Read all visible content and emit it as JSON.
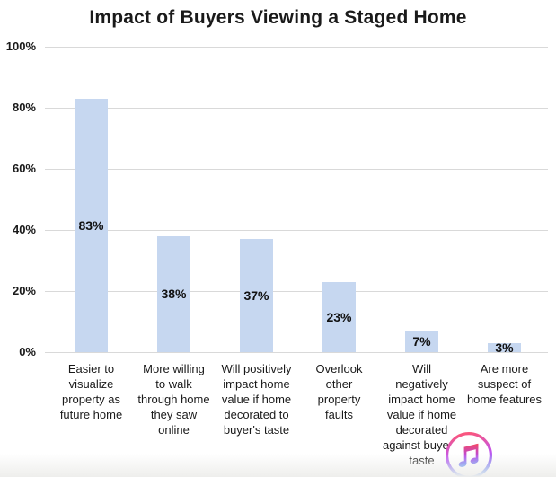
{
  "title": "Impact of Buyers Viewing a Staged Home",
  "colors": {
    "bar_fill": "#c6d7f0",
    "gridline": "#d9d9d9",
    "text": "#1a1a1a",
    "icon_gradient_top": "#f8485a",
    "icon_gradient_mid": "#b44ae8",
    "icon_gradient_bottom": "#3f8ef7"
  },
  "y_axis": {
    "ticks": [
      "100%",
      "80%",
      "60%",
      "40%",
      "20%",
      "0%"
    ]
  },
  "overlay_icon": {
    "name": "itunes-music-icon"
  },
  "chart_data": {
    "type": "bar",
    "title": "Impact of Buyers Viewing a Staged Home",
    "categories": [
      "Easier to visualize property as future home",
      "More willing to walk through home they saw online",
      "Will positively impact home value if home decorated to buyer's taste",
      "Overlook other property faults",
      "Will negatively impact home value if home decorated against buyer's taste",
      "Are more suspect of home features"
    ],
    "category_lines": [
      [
        "Easier to",
        "visualize",
        "property as",
        "future home"
      ],
      [
        "More willing",
        "to walk",
        "through home",
        "they saw",
        "online"
      ],
      [
        "Will positively",
        "impact home",
        "value if home",
        "decorated to",
        "buyer's taste"
      ],
      [
        "Overlook",
        "other",
        "property",
        "faults"
      ],
      [
        "Will",
        "negatively",
        "impact home",
        "value if home",
        "decorated",
        "against buyer's",
        "taste"
      ],
      [
        "Are more",
        "suspect of",
        "home features"
      ]
    ],
    "values": [
      83,
      38,
      37,
      23,
      7,
      3
    ],
    "value_labels": [
      "83%",
      "38%",
      "37%",
      "23%",
      "7%",
      "3%"
    ],
    "xlabel": "",
    "ylabel": "",
    "ylim": [
      0,
      100
    ],
    "y_tick_values": [
      100,
      80,
      60,
      40,
      20,
      0
    ],
    "grid": true,
    "legend": false,
    "value_label_position": "center-of-bar"
  }
}
